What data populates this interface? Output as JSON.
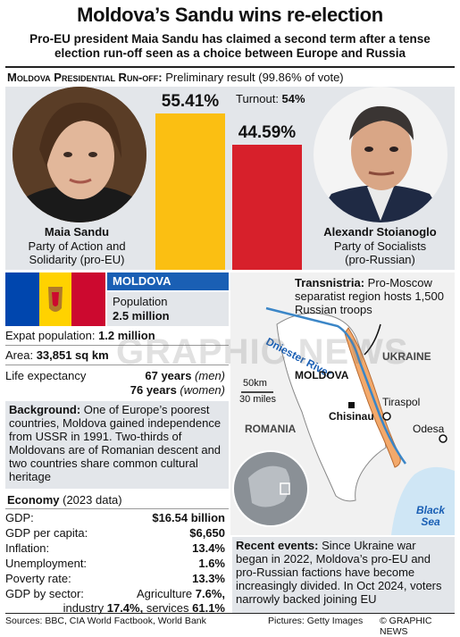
{
  "header": {
    "title": "Moldova’s Sandu wins re-election",
    "subtitle": "Pro-EU president Maia Sandu has claimed a second term after a tense election run-off seen as a choice between Europe and Russia"
  },
  "runoff": {
    "heading": "Moldova Presidential Run-off:",
    "subheading": " Preliminary result (99.86% of vote)",
    "turnout_label": "Turnout: ",
    "turnout_value": "54%"
  },
  "chart_data": {
    "type": "bar",
    "categories": [
      "Maia Sandu",
      "Alexandr Stoianoglo"
    ],
    "values": [
      55.41,
      44.59
    ],
    "value_labels": [
      "55.41%",
      "44.59%"
    ],
    "colors": [
      "#fbbf12",
      "#d7202b"
    ],
    "ylim": [
      0,
      60
    ]
  },
  "candidates": [
    {
      "name": "Maia Sandu",
      "party_line1": "Party of Action and",
      "party_line2": "Solidarity (pro-EU)"
    },
    {
      "name": "Alexandr Stoianoglo",
      "party_line1": "Party of Socialists",
      "party_line2": "(pro-Russian)"
    }
  ],
  "country": {
    "name": "MOLDOVA",
    "population_label": "Population",
    "population_value": "2.5 million",
    "expat_label": "Expat population: ",
    "expat_value": "1.2 million",
    "area_label": "Area: ",
    "area_value": "33,851 sq km",
    "life_label": "Life expectancy",
    "life_men_value": "67 years",
    "life_men_note": " (men)",
    "life_women_value": "76 years",
    "life_women_note": " (women)"
  },
  "background": {
    "heading": "Background:",
    "text": " One of Europe’s poorest countries, Moldova gained independence from USSR in 1991. Two-thirds of Moldovans are of Romanian descent and two countries share common cultural heritage"
  },
  "economy": {
    "heading": "Economy",
    "year": " (2023 data)",
    "rows": [
      {
        "label": "GDP:",
        "value": "$16.54 billion"
      },
      {
        "label": "GDP per capita:",
        "value": "$6,650"
      },
      {
        "label": "Inflation:",
        "value": "13.4%"
      },
      {
        "label": "Unemployment:",
        "value": "1.6%"
      },
      {
        "label": "Poverty rate:",
        "value": "13.3%"
      }
    ],
    "sector_label": "GDP by sector:",
    "agriculture_label": "Agriculture ",
    "agriculture_value": "7.6%,",
    "industry_label": "industry ",
    "industry_value": "17.4%,",
    "services_label": " services ",
    "services_value": "61.1%"
  },
  "map": {
    "transnistria_heading": "Transnistria:",
    "transnistria_text": " Pro-Moscow separatist region hosts 1,500 Russian troops",
    "river": "Dniester River",
    "ukraine": "UKRAINE",
    "moldova": "MOLDOVA",
    "romania": "ROMANIA",
    "chisinau": "Chisinau",
    "tiraspol": "Tiraspol",
    "odesa": "Odesa",
    "black_sea_1": "Black",
    "black_sea_2": "Sea",
    "scale_km": "50km",
    "scale_miles": "30 miles",
    "colors": {
      "water": "#cfe6f5",
      "land": "#f1f1f1",
      "moldova": "#ffffff",
      "transnistria": "#f3a96b"
    }
  },
  "recent": {
    "heading": "Recent events:",
    "text": " Since Ukraine war began in 2022, Moldova’s pro-EU and pro-Russian factions have become increasingly divided. In Oct 2024, voters narrowly backed joining EU"
  },
  "footer": {
    "sources": "Sources: BBC, CIA World Factbook, World Bank",
    "pictures": "Pictures: Getty Images",
    "copyright": "© GRAPHIC NEWS"
  },
  "watermark": "GRAPHIC NEWS"
}
